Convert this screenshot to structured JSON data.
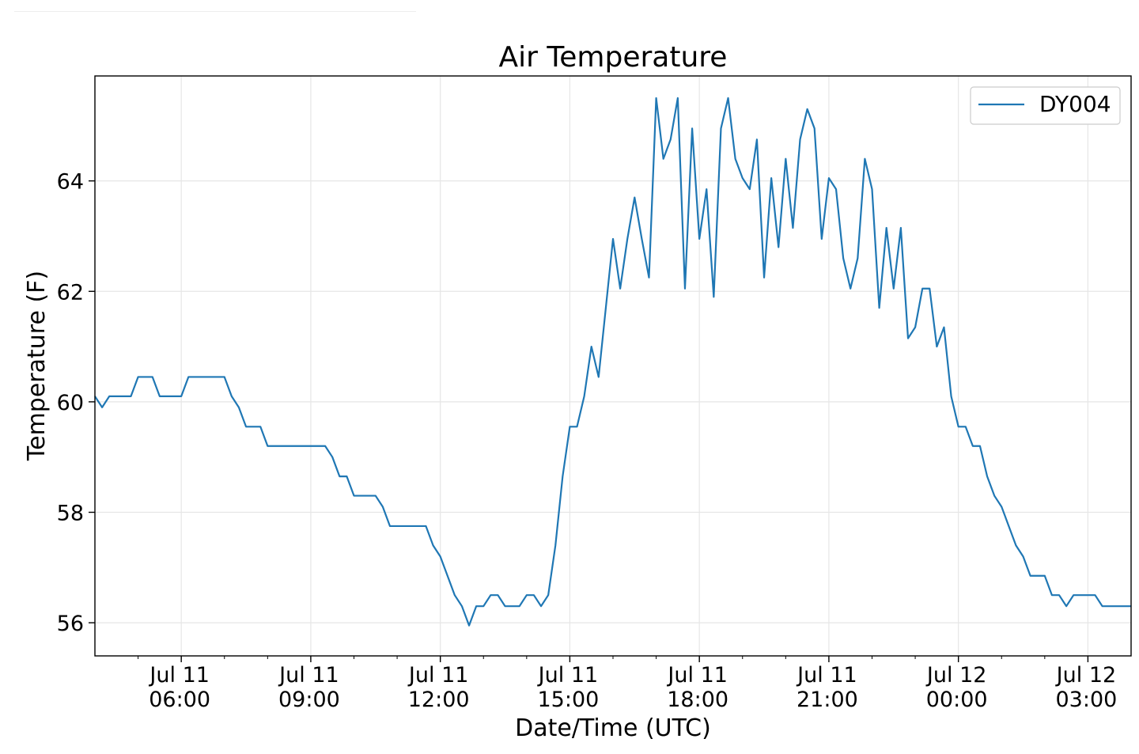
{
  "chart_data": {
    "type": "line",
    "title": "Air Temperature",
    "xlabel": "Date/Time (UTC)",
    "ylabel": "Temperature (F)",
    "x_start": "2019-07-11T04:00",
    "x_end": "2019-07-12T04:00",
    "x_ticks": [
      {
        "time": "2019-07-11T06:00",
        "label": [
          "Jul 11",
          "06:00"
        ]
      },
      {
        "time": "2019-07-11T09:00",
        "label": [
          "Jul 11",
          "09:00"
        ]
      },
      {
        "time": "2019-07-11T12:00",
        "label": [
          "Jul 11",
          "12:00"
        ]
      },
      {
        "time": "2019-07-11T15:00",
        "label": [
          "Jul 11",
          "15:00"
        ]
      },
      {
        "time": "2019-07-11T18:00",
        "label": [
          "Jul 11",
          "18:00"
        ]
      },
      {
        "time": "2019-07-11T21:00",
        "label": [
          "Jul 11",
          "21:00"
        ]
      },
      {
        "time": "2019-07-12T00:00",
        "label": [
          "Jul 12",
          "00:00"
        ]
      },
      {
        "time": "2019-07-12T03:00",
        "label": [
          "Jul 12",
          "03:00"
        ]
      }
    ],
    "ylim": [
      55.4,
      65.9
    ],
    "y_ticks": [
      56,
      58,
      60,
      62,
      64
    ],
    "grid": true,
    "legend_position": "top-right",
    "series": [
      {
        "name": "DY004",
        "color": "#1f77b4",
        "points": [
          [
            "2019-07-11T04:00",
            60.1
          ],
          [
            "2019-07-11T04:10",
            59.9
          ],
          [
            "2019-07-11T04:20",
            60.1
          ],
          [
            "2019-07-11T04:30",
            60.1
          ],
          [
            "2019-07-11T04:40",
            60.1
          ],
          [
            "2019-07-11T04:50",
            60.1
          ],
          [
            "2019-07-11T05:00",
            60.45
          ],
          [
            "2019-07-11T05:10",
            60.45
          ],
          [
            "2019-07-11T05:20",
            60.45
          ],
          [
            "2019-07-11T05:30",
            60.1
          ],
          [
            "2019-07-11T05:40",
            60.1
          ],
          [
            "2019-07-11T05:50",
            60.1
          ],
          [
            "2019-07-11T06:00",
            60.1
          ],
          [
            "2019-07-11T06:10",
            60.45
          ],
          [
            "2019-07-11T06:20",
            60.45
          ],
          [
            "2019-07-11T06:30",
            60.45
          ],
          [
            "2019-07-11T06:40",
            60.45
          ],
          [
            "2019-07-11T06:50",
            60.45
          ],
          [
            "2019-07-11T07:00",
            60.45
          ],
          [
            "2019-07-11T07:10",
            60.1
          ],
          [
            "2019-07-11T07:20",
            59.9
          ],
          [
            "2019-07-11T07:30",
            59.55
          ],
          [
            "2019-07-11T07:40",
            59.55
          ],
          [
            "2019-07-11T07:50",
            59.55
          ],
          [
            "2019-07-11T08:00",
            59.2
          ],
          [
            "2019-07-11T08:10",
            59.2
          ],
          [
            "2019-07-11T08:20",
            59.2
          ],
          [
            "2019-07-11T08:30",
            59.2
          ],
          [
            "2019-07-11T08:40",
            59.2
          ],
          [
            "2019-07-11T08:50",
            59.2
          ],
          [
            "2019-07-11T09:00",
            59.2
          ],
          [
            "2019-07-11T09:10",
            59.2
          ],
          [
            "2019-07-11T09:20",
            59.2
          ],
          [
            "2019-07-11T09:30",
            59.0
          ],
          [
            "2019-07-11T09:40",
            58.65
          ],
          [
            "2019-07-11T09:50",
            58.65
          ],
          [
            "2019-07-11T10:00",
            58.3
          ],
          [
            "2019-07-11T10:10",
            58.3
          ],
          [
            "2019-07-11T10:20",
            58.3
          ],
          [
            "2019-07-11T10:30",
            58.3
          ],
          [
            "2019-07-11T10:40",
            58.1
          ],
          [
            "2019-07-11T10:50",
            57.75
          ],
          [
            "2019-07-11T11:00",
            57.75
          ],
          [
            "2019-07-11T11:10",
            57.75
          ],
          [
            "2019-07-11T11:20",
            57.75
          ],
          [
            "2019-07-11T11:30",
            57.75
          ],
          [
            "2019-07-11T11:40",
            57.75
          ],
          [
            "2019-07-11T11:50",
            57.4
          ],
          [
            "2019-07-11T12:00",
            57.2
          ],
          [
            "2019-07-11T12:10",
            56.85
          ],
          [
            "2019-07-11T12:20",
            56.5
          ],
          [
            "2019-07-11T12:30",
            56.3
          ],
          [
            "2019-07-11T12:40",
            55.95
          ],
          [
            "2019-07-11T12:50",
            56.3
          ],
          [
            "2019-07-11T13:00",
            56.3
          ],
          [
            "2019-07-11T13:10",
            56.5
          ],
          [
            "2019-07-11T13:20",
            56.5
          ],
          [
            "2019-07-11T13:30",
            56.3
          ],
          [
            "2019-07-11T13:40",
            56.3
          ],
          [
            "2019-07-11T13:50",
            56.3
          ],
          [
            "2019-07-11T14:00",
            56.5
          ],
          [
            "2019-07-11T14:10",
            56.5
          ],
          [
            "2019-07-11T14:20",
            56.3
          ],
          [
            "2019-07-11T14:30",
            56.5
          ],
          [
            "2019-07-11T14:40",
            57.4
          ],
          [
            "2019-07-11T14:50",
            58.65
          ],
          [
            "2019-07-11T15:00",
            59.55
          ],
          [
            "2019-07-11T15:10",
            59.55
          ],
          [
            "2019-07-11T15:20",
            60.1
          ],
          [
            "2019-07-11T15:30",
            61.0
          ],
          [
            "2019-07-11T15:40",
            60.45
          ],
          [
            "2019-07-11T15:50",
            61.7
          ],
          [
            "2019-07-11T16:00",
            62.95
          ],
          [
            "2019-07-11T16:10",
            62.05
          ],
          [
            "2019-07-11T16:20",
            62.95
          ],
          [
            "2019-07-11T16:30",
            63.7
          ],
          [
            "2019-07-11T16:40",
            62.95
          ],
          [
            "2019-07-11T16:50",
            62.25
          ],
          [
            "2019-07-11T17:00",
            65.5
          ],
          [
            "2019-07-11T17:10",
            64.4
          ],
          [
            "2019-07-11T17:20",
            64.75
          ],
          [
            "2019-07-11T17:30",
            65.5
          ],
          [
            "2019-07-11T17:40",
            62.05
          ],
          [
            "2019-07-11T17:50",
            64.95
          ],
          [
            "2019-07-11T18:00",
            62.95
          ],
          [
            "2019-07-11T18:10",
            63.85
          ],
          [
            "2019-07-11T18:20",
            61.9
          ],
          [
            "2019-07-11T18:30",
            64.95
          ],
          [
            "2019-07-11T18:40",
            65.5
          ],
          [
            "2019-07-11T18:50",
            64.4
          ],
          [
            "2019-07-11T19:00",
            64.05
          ],
          [
            "2019-07-11T19:10",
            63.85
          ],
          [
            "2019-07-11T19:20",
            64.75
          ],
          [
            "2019-07-11T19:30",
            62.25
          ],
          [
            "2019-07-11T19:40",
            64.05
          ],
          [
            "2019-07-11T19:50",
            62.8
          ],
          [
            "2019-07-11T20:00",
            64.4
          ],
          [
            "2019-07-11T20:10",
            63.15
          ],
          [
            "2019-07-11T20:20",
            64.75
          ],
          [
            "2019-07-11T20:30",
            65.3
          ],
          [
            "2019-07-11T20:40",
            64.95
          ],
          [
            "2019-07-11T20:50",
            62.95
          ],
          [
            "2019-07-11T21:00",
            64.05
          ],
          [
            "2019-07-11T21:10",
            63.85
          ],
          [
            "2019-07-11T21:20",
            62.6
          ],
          [
            "2019-07-11T21:30",
            62.05
          ],
          [
            "2019-07-11T21:40",
            62.6
          ],
          [
            "2019-07-11T21:50",
            64.4
          ],
          [
            "2019-07-11T22:00",
            63.85
          ],
          [
            "2019-07-11T22:10",
            61.7
          ],
          [
            "2019-07-11T22:20",
            63.15
          ],
          [
            "2019-07-11T22:30",
            62.05
          ],
          [
            "2019-07-11T22:40",
            63.15
          ],
          [
            "2019-07-11T22:50",
            61.15
          ],
          [
            "2019-07-11T23:00",
            61.35
          ],
          [
            "2019-07-11T23:10",
            62.05
          ],
          [
            "2019-07-11T23:20",
            62.05
          ],
          [
            "2019-07-11T23:30",
            61.0
          ],
          [
            "2019-07-11T23:40",
            61.35
          ],
          [
            "2019-07-11T23:50",
            60.1
          ],
          [
            "2019-07-12T00:00",
            59.55
          ],
          [
            "2019-07-12T00:10",
            59.55
          ],
          [
            "2019-07-12T00:20",
            59.2
          ],
          [
            "2019-07-12T00:30",
            59.2
          ],
          [
            "2019-07-12T00:40",
            58.65
          ],
          [
            "2019-07-12T00:50",
            58.3
          ],
          [
            "2019-07-12T01:00",
            58.1
          ],
          [
            "2019-07-12T01:10",
            57.75
          ],
          [
            "2019-07-12T01:20",
            57.4
          ],
          [
            "2019-07-12T01:30",
            57.2
          ],
          [
            "2019-07-12T01:40",
            56.85
          ],
          [
            "2019-07-12T01:50",
            56.85
          ],
          [
            "2019-07-12T02:00",
            56.85
          ],
          [
            "2019-07-12T02:10",
            56.5
          ],
          [
            "2019-07-12T02:20",
            56.5
          ],
          [
            "2019-07-12T02:30",
            56.3
          ],
          [
            "2019-07-12T02:40",
            56.5
          ],
          [
            "2019-07-12T02:50",
            56.5
          ],
          [
            "2019-07-12T03:00",
            56.5
          ],
          [
            "2019-07-12T03:10",
            56.5
          ],
          [
            "2019-07-12T03:20",
            56.3
          ],
          [
            "2019-07-12T03:30",
            56.3
          ],
          [
            "2019-07-12T03:40",
            56.3
          ],
          [
            "2019-07-12T03:50",
            56.3
          ],
          [
            "2019-07-12T04:00",
            56.3
          ]
        ]
      }
    ]
  }
}
